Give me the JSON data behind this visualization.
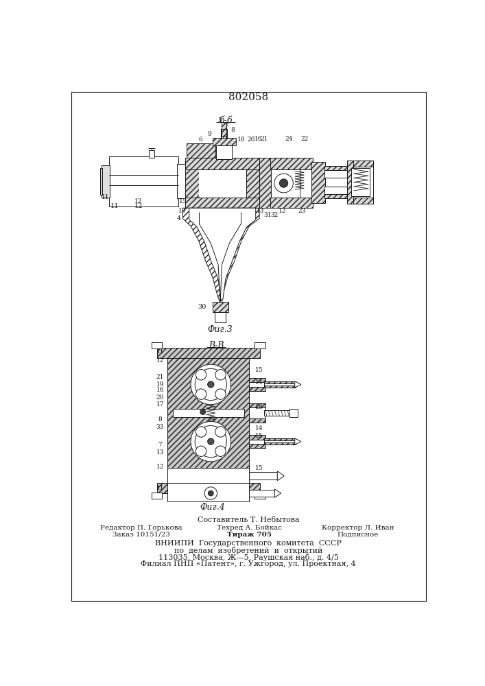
{
  "patent_number": "802058",
  "fig3_label": "б-б",
  "fig4_label": "В-В",
  "fig3_caption": "Фиг.3",
  "fig4_caption": "Фиг.4",
  "footer_line0": "Составитель Т. Небытова",
  "footer_col1_line1": "Редактор П. Горькова",
  "footer_col1_line2": "Заказ 10151/23",
  "footer_col2_line1": "Техред А. Бойкас",
  "footer_col2_line2": "Тираж 705",
  "footer_col3_line1": "Корректор Л. Иван",
  "footer_col3_line2": "Подписное",
  "footer_org1": "ВНИИПИ  Государственного  комитета  СССР",
  "footer_org2": "по  делам  изобретений  и  открытий",
  "footer_org3": "113035, Москва, Ж—5, Раушская наб., д. 4/5",
  "footer_org4": "Филиал ПНП «Патент», г. Ужгород, ул. Проектная, 4",
  "bg_color": "#ffffff",
  "line_color": "#1a1a1a"
}
